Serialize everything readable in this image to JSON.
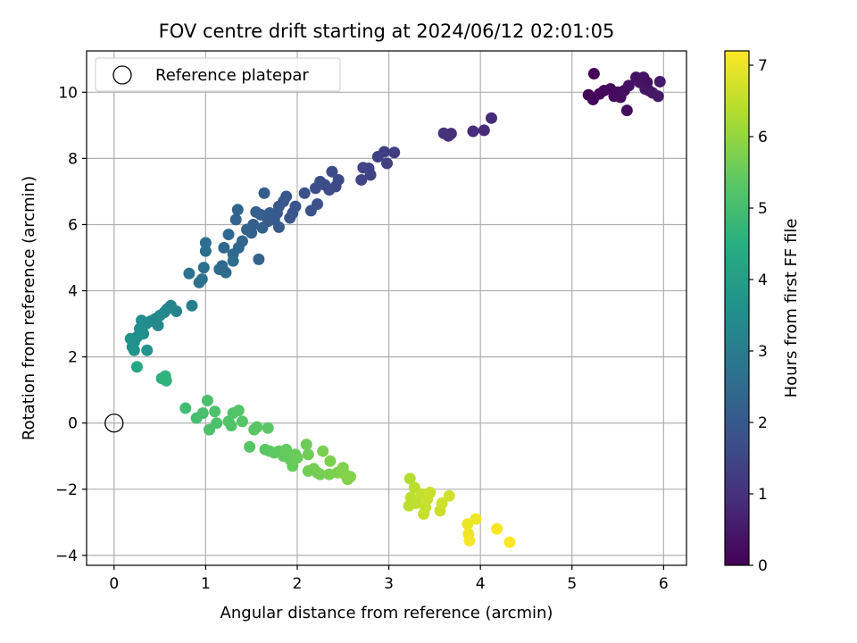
{
  "chart_data": {
    "type": "scatter",
    "title": "FOV centre drift starting at 2024/06/12 02:01:05",
    "xlabel": "Angular distance from reference (arcmin)",
    "ylabel": "Rotation from reference (arcmin)",
    "xlim": [
      -0.3,
      6.25
    ],
    "ylim": [
      -4.3,
      11.25
    ],
    "xticks": [
      0,
      1,
      2,
      3,
      4,
      5,
      6
    ],
    "yticks": [
      -4,
      -2,
      0,
      2,
      4,
      6,
      8,
      10
    ],
    "grid": true,
    "legend": {
      "position": "upper left",
      "entries": [
        "Reference platepar"
      ]
    },
    "reference_point": {
      "x": 0,
      "y": 0,
      "marker": "open-circle"
    },
    "colorbar": {
      "label": "Hours from first FF file",
      "colormap": "viridis",
      "range": [
        0,
        7.2
      ],
      "ticks": [
        0,
        1,
        2,
        3,
        4,
        5,
        6,
        7
      ]
    },
    "points": [
      {
        "x": 5.24,
        "y": 10.56,
        "c": 0.05
      },
      {
        "x": 5.18,
        "y": 9.92,
        "c": 0.08
      },
      {
        "x": 5.23,
        "y": 9.78,
        "c": 0.1
      },
      {
        "x": 5.3,
        "y": 9.95,
        "c": 0.12
      },
      {
        "x": 5.35,
        "y": 10.05,
        "c": 0.15
      },
      {
        "x": 5.42,
        "y": 10.1,
        "c": 0.18
      },
      {
        "x": 5.46,
        "y": 9.88,
        "c": 0.2
      },
      {
        "x": 5.5,
        "y": 10.0,
        "c": 0.22
      },
      {
        "x": 5.53,
        "y": 9.85,
        "c": 0.25
      },
      {
        "x": 5.57,
        "y": 10.05,
        "c": 0.28
      },
      {
        "x": 5.6,
        "y": 9.45,
        "c": 0.3
      },
      {
        "x": 5.62,
        "y": 10.2,
        "c": 0.32
      },
      {
        "x": 5.7,
        "y": 10.45,
        "c": 0.35
      },
      {
        "x": 5.74,
        "y": 10.3,
        "c": 0.38
      },
      {
        "x": 5.78,
        "y": 10.45,
        "c": 0.4
      },
      {
        "x": 5.8,
        "y": 10.1,
        "c": 0.42
      },
      {
        "x": 5.84,
        "y": 10.05,
        "c": 0.45
      },
      {
        "x": 5.88,
        "y": 9.98,
        "c": 0.48
      },
      {
        "x": 5.94,
        "y": 9.88,
        "c": 0.5
      },
      {
        "x": 5.96,
        "y": 10.32,
        "c": 0.52
      },
      {
        "x": 5.82,
        "y": 10.3,
        "c": 0.35
      },
      {
        "x": 4.12,
        "y": 9.22,
        "c": 0.85
      },
      {
        "x": 4.04,
        "y": 8.85,
        "c": 0.9
      },
      {
        "x": 3.92,
        "y": 8.82,
        "c": 0.95
      },
      {
        "x": 3.68,
        "y": 8.75,
        "c": 1.0
      },
      {
        "x": 3.65,
        "y": 8.68,
        "c": 1.02
      },
      {
        "x": 3.6,
        "y": 8.76,
        "c": 1.05
      },
      {
        "x": 3.06,
        "y": 8.18,
        "c": 1.3
      },
      {
        "x": 2.95,
        "y": 8.2,
        "c": 1.35
      },
      {
        "x": 2.98,
        "y": 7.85,
        "c": 1.38
      },
      {
        "x": 2.88,
        "y": 8.05,
        "c": 1.42
      },
      {
        "x": 2.78,
        "y": 7.7,
        "c": 1.45
      },
      {
        "x": 2.8,
        "y": 7.5,
        "c": 1.48
      },
      {
        "x": 2.7,
        "y": 7.35,
        "c": 1.5
      },
      {
        "x": 2.72,
        "y": 7.72,
        "c": 1.52
      },
      {
        "x": 2.45,
        "y": 7.35,
        "c": 1.6
      },
      {
        "x": 2.42,
        "y": 7.15,
        "c": 1.62
      },
      {
        "x": 2.38,
        "y": 7.6,
        "c": 1.64
      },
      {
        "x": 2.35,
        "y": 7.05,
        "c": 1.66
      },
      {
        "x": 2.3,
        "y": 7.2,
        "c": 1.7
      },
      {
        "x": 2.25,
        "y": 7.3,
        "c": 1.72
      },
      {
        "x": 2.2,
        "y": 7.1,
        "c": 1.74
      },
      {
        "x": 2.08,
        "y": 6.95,
        "c": 1.8
      },
      {
        "x": 2.22,
        "y": 6.62,
        "c": 1.82
      },
      {
        "x": 2.15,
        "y": 6.42,
        "c": 1.85
      },
      {
        "x": 1.98,
        "y": 6.55,
        "c": 1.9
      },
      {
        "x": 1.95,
        "y": 6.35,
        "c": 1.92
      },
      {
        "x": 1.92,
        "y": 6.2,
        "c": 1.94
      },
      {
        "x": 1.88,
        "y": 6.85,
        "c": 1.96
      },
      {
        "x": 1.85,
        "y": 6.7,
        "c": 1.98
      },
      {
        "x": 1.8,
        "y": 6.55,
        "c": 2.0
      },
      {
        "x": 1.78,
        "y": 6.35,
        "c": 2.02
      },
      {
        "x": 1.75,
        "y": 6.15,
        "c": 2.05
      },
      {
        "x": 1.8,
        "y": 5.92,
        "c": 2.08
      },
      {
        "x": 1.7,
        "y": 6.35,
        "c": 2.1
      },
      {
        "x": 1.68,
        "y": 6.1,
        "c": 2.12
      },
      {
        "x": 1.64,
        "y": 6.95,
        "c": 2.14
      },
      {
        "x": 1.6,
        "y": 6.3,
        "c": 2.16
      },
      {
        "x": 1.55,
        "y": 6.38,
        "c": 2.18
      },
      {
        "x": 1.52,
        "y": 6.0,
        "c": 2.2
      },
      {
        "x": 1.5,
        "y": 5.75,
        "c": 2.22
      },
      {
        "x": 1.62,
        "y": 5.9,
        "c": 2.24
      },
      {
        "x": 1.58,
        "y": 4.95,
        "c": 2.3
      },
      {
        "x": 1.35,
        "y": 6.45,
        "c": 2.35
      },
      {
        "x": 1.33,
        "y": 6.15,
        "c": 2.37
      },
      {
        "x": 1.4,
        "y": 5.5,
        "c": 2.4
      },
      {
        "x": 1.36,
        "y": 5.3,
        "c": 2.42
      },
      {
        "x": 1.3,
        "y": 5.1,
        "c": 2.44
      },
      {
        "x": 1.25,
        "y": 5.7,
        "c": 2.46
      },
      {
        "x": 1.2,
        "y": 5.3,
        "c": 2.48
      },
      {
        "x": 1.18,
        "y": 4.75,
        "c": 2.5
      },
      {
        "x": 1.22,
        "y": 4.55,
        "c": 2.52
      },
      {
        "x": 1.15,
        "y": 4.65,
        "c": 2.54
      },
      {
        "x": 1.3,
        "y": 4.9,
        "c": 2.55
      },
      {
        "x": 1.0,
        "y": 5.45,
        "c": 2.6
      },
      {
        "x": 1.0,
        "y": 5.2,
        "c": 2.62
      },
      {
        "x": 0.98,
        "y": 4.7,
        "c": 2.66
      },
      {
        "x": 0.96,
        "y": 4.35,
        "c": 2.7
      },
      {
        "x": 0.93,
        "y": 4.25,
        "c": 2.72
      },
      {
        "x": 0.82,
        "y": 4.52,
        "c": 2.75
      },
      {
        "x": 1.45,
        "y": 5.85,
        "c": 2.28
      },
      {
        "x": 0.85,
        "y": 3.55,
        "c": 3.1
      },
      {
        "x": 0.68,
        "y": 3.38,
        "c": 3.2
      },
      {
        "x": 0.62,
        "y": 3.55,
        "c": 3.25
      },
      {
        "x": 0.58,
        "y": 3.45,
        "c": 3.28
      },
      {
        "x": 0.55,
        "y": 3.35,
        "c": 3.3
      },
      {
        "x": 0.5,
        "y": 3.25,
        "c": 3.33
      },
      {
        "x": 0.45,
        "y": 3.15,
        "c": 3.36
      },
      {
        "x": 0.48,
        "y": 2.95,
        "c": 3.38
      },
      {
        "x": 0.4,
        "y": 3.08,
        "c": 3.4
      },
      {
        "x": 0.35,
        "y": 3.0,
        "c": 3.45
      },
      {
        "x": 0.3,
        "y": 3.1,
        "c": 3.47
      },
      {
        "x": 0.28,
        "y": 2.85,
        "c": 3.5
      },
      {
        "x": 0.32,
        "y": 2.7,
        "c": 3.55
      },
      {
        "x": 0.25,
        "y": 2.6,
        "c": 3.58
      },
      {
        "x": 0.22,
        "y": 2.45,
        "c": 3.6
      },
      {
        "x": 0.2,
        "y": 2.3,
        "c": 3.62
      },
      {
        "x": 0.18,
        "y": 2.55,
        "c": 3.65
      },
      {
        "x": 0.22,
        "y": 2.2,
        "c": 3.68
      },
      {
        "x": 0.36,
        "y": 2.2,
        "c": 3.72
      },
      {
        "x": 0.3,
        "y": 2.75,
        "c": 3.6
      },
      {
        "x": 0.25,
        "y": 1.7,
        "c": 4.3
      },
      {
        "x": 0.52,
        "y": 1.35,
        "c": 4.6
      },
      {
        "x": 0.56,
        "y": 1.42,
        "c": 4.65
      },
      {
        "x": 0.57,
        "y": 1.28,
        "c": 4.68
      },
      {
        "x": 0.78,
        "y": 0.45,
        "c": 5.0
      },
      {
        "x": 0.9,
        "y": 0.15,
        "c": 5.05
      },
      {
        "x": 0.97,
        "y": 0.3,
        "c": 5.08
      },
      {
        "x": 1.02,
        "y": 0.68,
        "c": 5.1
      },
      {
        "x": 1.04,
        "y": -0.2,
        "c": 5.12
      },
      {
        "x": 1.1,
        "y": 0.35,
        "c": 5.14
      },
      {
        "x": 1.12,
        "y": 0.0,
        "c": 5.16
      },
      {
        "x": 1.25,
        "y": 0.05,
        "c": 5.2
      },
      {
        "x": 1.28,
        "y": -0.08,
        "c": 5.22
      },
      {
        "x": 1.3,
        "y": 0.3,
        "c": 5.24
      },
      {
        "x": 1.36,
        "y": 0.38,
        "c": 5.26
      },
      {
        "x": 1.4,
        "y": 0.05,
        "c": 5.28
      },
      {
        "x": 1.48,
        "y": -0.72,
        "c": 5.3
      },
      {
        "x": 1.53,
        "y": -0.2,
        "c": 5.32
      },
      {
        "x": 1.56,
        "y": -0.12,
        "c": 5.34
      },
      {
        "x": 1.68,
        "y": -0.15,
        "c": 5.36
      },
      {
        "x": 1.65,
        "y": -0.8,
        "c": 5.38
      },
      {
        "x": 1.7,
        "y": -0.85,
        "c": 5.4
      },
      {
        "x": 1.75,
        "y": -0.9,
        "c": 5.42
      },
      {
        "x": 1.8,
        "y": -0.85,
        "c": 5.44
      },
      {
        "x": 1.85,
        "y": -1.0,
        "c": 5.46
      },
      {
        "x": 1.88,
        "y": -0.8,
        "c": 5.48
      },
      {
        "x": 1.92,
        "y": -1.1,
        "c": 5.5
      },
      {
        "x": 1.95,
        "y": -1.3,
        "c": 5.52
      },
      {
        "x": 1.98,
        "y": -0.95,
        "c": 5.54
      },
      {
        "x": 2.0,
        "y": -1.05,
        "c": 5.56
      },
      {
        "x": 2.1,
        "y": -0.65,
        "c": 5.6
      },
      {
        "x": 2.12,
        "y": -0.95,
        "c": 5.62
      },
      {
        "x": 2.12,
        "y": -1.45,
        "c": 5.64
      },
      {
        "x": 2.18,
        "y": -1.38,
        "c": 5.66
      },
      {
        "x": 2.22,
        "y": -1.5,
        "c": 5.68
      },
      {
        "x": 2.25,
        "y": -1.55,
        "c": 5.7
      },
      {
        "x": 2.28,
        "y": -0.85,
        "c": 5.72
      },
      {
        "x": 2.35,
        "y": -1.55,
        "c": 5.74
      },
      {
        "x": 2.36,
        "y": -1.15,
        "c": 5.76
      },
      {
        "x": 2.44,
        "y": -1.5,
        "c": 5.78
      },
      {
        "x": 2.5,
        "y": -1.35,
        "c": 5.8
      },
      {
        "x": 2.52,
        "y": -1.55,
        "c": 5.82
      },
      {
        "x": 2.55,
        "y": -1.7,
        "c": 5.84
      },
      {
        "x": 2.58,
        "y": -1.62,
        "c": 5.86
      },
      {
        "x": 3.23,
        "y": -1.68,
        "c": 6.4
      },
      {
        "x": 3.28,
        "y": -1.95,
        "c": 6.45
      },
      {
        "x": 3.24,
        "y": -2.25,
        "c": 6.48
      },
      {
        "x": 3.22,
        "y": -2.5,
        "c": 6.5
      },
      {
        "x": 3.3,
        "y": -2.42,
        "c": 6.52
      },
      {
        "x": 3.36,
        "y": -2.15,
        "c": 6.55
      },
      {
        "x": 3.38,
        "y": -2.75,
        "c": 6.58
      },
      {
        "x": 3.4,
        "y": -2.55,
        "c": 6.6
      },
      {
        "x": 3.42,
        "y": -2.3,
        "c": 6.62
      },
      {
        "x": 3.45,
        "y": -2.1,
        "c": 6.64
      },
      {
        "x": 3.56,
        "y": -2.65,
        "c": 6.66
      },
      {
        "x": 3.58,
        "y": -2.42,
        "c": 6.68
      },
      {
        "x": 3.66,
        "y": -2.2,
        "c": 6.7
      },
      {
        "x": 3.86,
        "y": -3.05,
        "c": 7.0
      },
      {
        "x": 3.87,
        "y": -3.35,
        "c": 7.05
      },
      {
        "x": 3.88,
        "y": -3.55,
        "c": 7.1
      },
      {
        "x": 3.95,
        "y": -2.9,
        "c": 7.05
      },
      {
        "x": 4.18,
        "y": -3.2,
        "c": 7.15
      },
      {
        "x": 4.32,
        "y": -3.6,
        "c": 7.2
      }
    ]
  }
}
